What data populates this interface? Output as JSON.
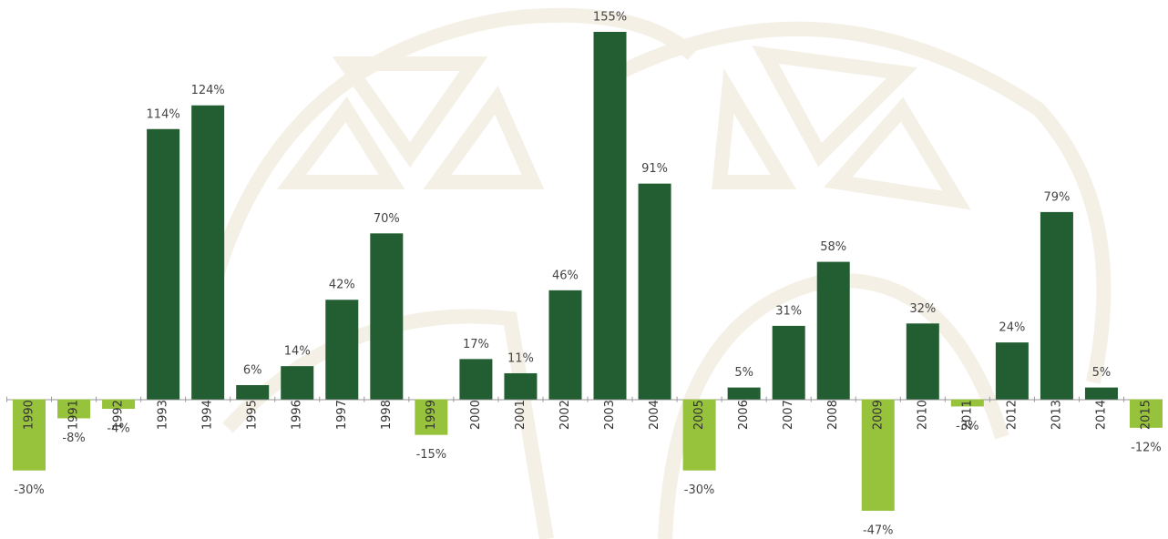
{
  "chart_data": {
    "type": "bar",
    "categories": [
      "1990",
      "1991",
      "1992",
      "1993",
      "1994",
      "1995",
      "1996",
      "1997",
      "1998",
      "1999",
      "2000",
      "2001",
      "2002",
      "2003",
      "2004",
      "2005",
      "2006",
      "2007",
      "2008",
      "2009",
      "2010",
      "2011",
      "2012",
      "2013",
      "2014",
      "2015"
    ],
    "values": [
      -30,
      -8,
      -4,
      114,
      124,
      6,
      14,
      42,
      70,
      -15,
      17,
      11,
      46,
      155,
      91,
      -30,
      5,
      31,
      58,
      -47,
      32,
      -3,
      24,
      79,
      5,
      -12
    ],
    "value_labels": [
      "-30%",
      "-8%",
      "-4%",
      "114%",
      "124%",
      "6%",
      "14%",
      "42%",
      "70%",
      "-15%",
      "17%",
      "11%",
      "46%",
      "155%",
      "91%",
      "-30%",
      "5%",
      "31%",
      "58%",
      "-47%",
      "32%",
      "-3%",
      "24%",
      "79%",
      "5%",
      "-12%"
    ],
    "color": "#235e32",
    "negative_color": "#97c23c"
  }
}
